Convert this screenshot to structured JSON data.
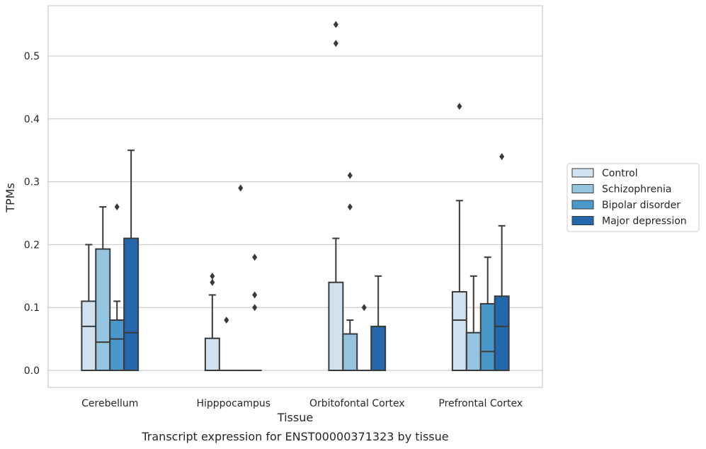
{
  "chart_data": {
    "type": "boxplot",
    "title": "",
    "caption": "Transcript expression for ENST00000371323 by tissue",
    "xlabel": "Tissue",
    "ylabel": "TPMs",
    "ylim": [
      -0.027,
      0.58
    ],
    "yticks": [
      "0.0",
      "0.1",
      "0.2",
      "0.3",
      "0.4",
      "0.5"
    ],
    "ytick_values": [
      0,
      0.1,
      0.2,
      0.3,
      0.4,
      0.5
    ],
    "grid": "horizontal",
    "legend_position": "right",
    "categories": [
      "Cerebellum",
      "Hipppocampus",
      "Orbitofontal Cortex",
      "Prefrontal Cortex"
    ],
    "series": [
      {
        "name": "Control",
        "color": "#d0e1f0",
        "boxes": [
          {
            "min": 0,
            "q1": 0,
            "median": 0.07,
            "q3": 0.11,
            "max": 0.2,
            "outliers": []
          },
          {
            "min": 0,
            "q1": 0,
            "median": 0,
            "q3": 0.051,
            "max": 0.12,
            "outliers": [
              0.14,
              0.15
            ]
          },
          {
            "min": 0,
            "q1": 0,
            "median": 0,
            "q3": 0.14,
            "max": 0.21,
            "outliers": [
              0.52,
              0.55
            ]
          },
          {
            "min": 0,
            "q1": 0,
            "median": 0.08,
            "q3": 0.125,
            "max": 0.27,
            "outliers": [
              0.42
            ]
          }
        ]
      },
      {
        "name": "Schizophrenia",
        "color": "#94c4df",
        "boxes": [
          {
            "min": 0,
            "q1": 0,
            "median": 0.045,
            "q3": 0.193,
            "max": 0.26,
            "outliers": []
          },
          {
            "min": 0,
            "q1": 0,
            "median": 0,
            "q3": 0,
            "max": 0,
            "outliers": [
              0.08
            ]
          },
          {
            "min": 0,
            "q1": 0,
            "median": 0,
            "q3": 0.058,
            "max": 0.08,
            "outliers": [
              0.26,
              0.31
            ]
          },
          {
            "min": 0,
            "q1": 0,
            "median": 0,
            "q3": 0.06,
            "max": 0.15,
            "outliers": []
          }
        ]
      },
      {
        "name": "Bipolar disorder",
        "color": "#4a98c9",
        "boxes": [
          {
            "min": 0,
            "q1": 0,
            "median": 0.05,
            "q3": 0.08,
            "max": 0.11,
            "outliers": [
              0.26
            ]
          },
          {
            "min": 0,
            "q1": 0,
            "median": 0,
            "q3": 0,
            "max": 0,
            "outliers": [
              0.29
            ]
          },
          {
            "min": 0,
            "q1": 0,
            "median": 0,
            "q3": 0,
            "max": 0,
            "outliers": [
              0.1
            ]
          },
          {
            "min": 0,
            "q1": 0,
            "median": 0.03,
            "q3": 0.106,
            "max": 0.18,
            "outliers": []
          }
        ]
      },
      {
        "name": "Major depression",
        "color": "#2468ac",
        "boxes": [
          {
            "min": 0,
            "q1": 0,
            "median": 0.06,
            "q3": 0.21,
            "max": 0.35,
            "outliers": []
          },
          {
            "min": 0,
            "q1": 0,
            "median": 0,
            "q3": 0,
            "max": 0,
            "outliers": [
              0.1,
              0.12,
              0.18
            ]
          },
          {
            "min": 0,
            "q1": 0,
            "median": 0,
            "q3": 0.07,
            "max": 0.15,
            "outliers": []
          },
          {
            "min": 0,
            "q1": 0,
            "median": 0.07,
            "q3": 0.118,
            "max": 0.23,
            "outliers": [
              0.34
            ]
          }
        ]
      }
    ]
  }
}
